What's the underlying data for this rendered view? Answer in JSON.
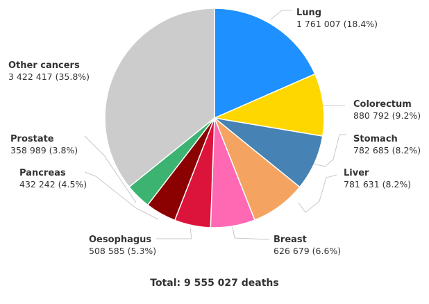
{
  "chart_data": {
    "type": "pie",
    "total_label": "Total: 9 555 027 deaths",
    "slices": [
      {
        "name": "Lung",
        "value_text": "1 761 007 (18.4%)",
        "value": 1761007,
        "percent": 18.4,
        "color": "#1E90FF"
      },
      {
        "name": "Colorectum",
        "value_text": "880 792 (9.2%)",
        "value": 880792,
        "percent": 9.2,
        "color": "#FFD700"
      },
      {
        "name": "Stomach",
        "value_text": "782 685 (8.2%)",
        "value": 782685,
        "percent": 8.2,
        "color": "#4682B4"
      },
      {
        "name": "Liver",
        "value_text": "781 631 (8.2%)",
        "value": 781631,
        "percent": 8.2,
        "color": "#F4A460"
      },
      {
        "name": "Breast",
        "value_text": "626 679 (6.6%)",
        "value": 626679,
        "percent": 6.6,
        "color": "#FF69B4"
      },
      {
        "name": "Oesophagus",
        "value_text": "508 585 (5.3%)",
        "value": 508585,
        "percent": 5.3,
        "color": "#DC143C"
      },
      {
        "name": "Pancreas",
        "value_text": "432 242 (4.5%)",
        "value": 432242,
        "percent": 4.5,
        "color": "#8B0000"
      },
      {
        "name": "Prostate",
        "value_text": "358 989 (3.8%)",
        "value": 358989,
        "percent": 3.8,
        "color": "#3CB371"
      },
      {
        "name": "Other cancers",
        "value_text": "3 422 417 (35.8%)",
        "value": 3422417,
        "percent": 35.8,
        "color": "#CCCCCC"
      }
    ]
  }
}
